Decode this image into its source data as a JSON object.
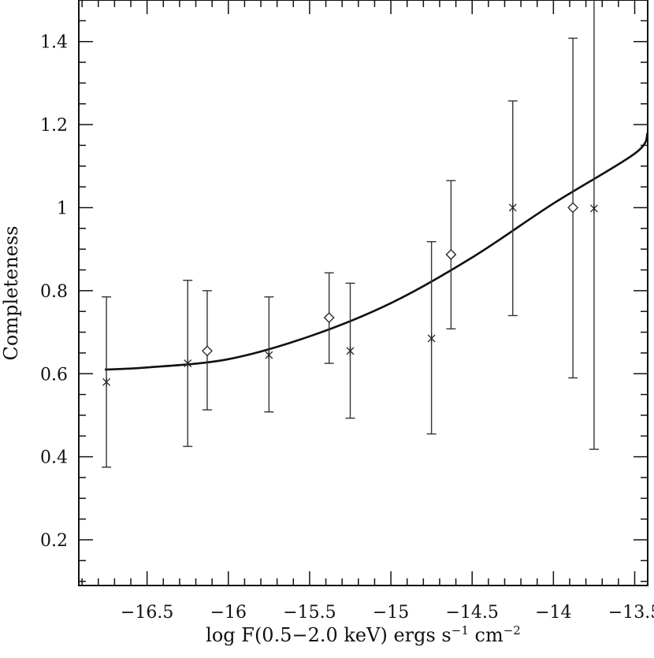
{
  "chart_data": {
    "type": "scatter",
    "title": "",
    "xlabel": {
      "prefix": "log F(0.5−2.0 keV) ergs s",
      "exp1": "−1",
      "middle": " cm",
      "exp2": "−2"
    },
    "ylabel": "Completeness",
    "xlim": [
      -16.92,
      -13.42
    ],
    "ylim": [
      0.09,
      1.5
    ],
    "x_ticks": [
      {
        "value": -16.5,
        "label": "−16.5"
      },
      {
        "value": -16.0,
        "label": "−16"
      },
      {
        "value": -15.5,
        "label": "−15.5"
      },
      {
        "value": -15.0,
        "label": "−15"
      },
      {
        "value": -14.5,
        "label": "−14.5"
      },
      {
        "value": -14.0,
        "label": "−14"
      },
      {
        "value": -13.5,
        "label": "−13.5"
      }
    ],
    "y_ticks": [
      {
        "value": 0.2,
        "label": "0.2"
      },
      {
        "value": 0.4,
        "label": "0.4"
      },
      {
        "value": 0.6,
        "label": "0.6"
      },
      {
        "value": 0.8,
        "label": "0.8"
      },
      {
        "value": 1.0,
        "label": "1"
      },
      {
        "value": 1.2,
        "label": "1.2"
      },
      {
        "value": 1.4,
        "label": "1.4"
      }
    ],
    "grid": false,
    "legend": "none",
    "series": [
      {
        "marker": "cross",
        "points": [
          {
            "x": -16.75,
            "y": 0.58,
            "ylo": 0.375,
            "yhi": 0.785
          },
          {
            "x": -16.25,
            "y": 0.625,
            "ylo": 0.425,
            "yhi": 0.825
          },
          {
            "x": -15.75,
            "y": 0.645,
            "ylo": 0.508,
            "yhi": 0.785
          },
          {
            "x": -15.25,
            "y": 0.655,
            "ylo": 0.493,
            "yhi": 0.818
          },
          {
            "x": -14.75,
            "y": 0.685,
            "ylo": 0.455,
            "yhi": 0.918
          },
          {
            "x": -14.25,
            "y": 1.0,
            "ylo": 0.74,
            "yhi": 1.257
          },
          {
            "x": -13.75,
            "y": 0.998,
            "ylo": 0.418,
            "yhi": 1.55
          }
        ]
      },
      {
        "marker": "diamond",
        "points": [
          {
            "x": -16.13,
            "y": 0.655,
            "ylo": 0.513,
            "yhi": 0.8
          },
          {
            "x": -15.38,
            "y": 0.735,
            "ylo": 0.625,
            "yhi": 0.843
          },
          {
            "x": -14.63,
            "y": 0.887,
            "ylo": 0.708,
            "yhi": 1.065
          },
          {
            "x": -13.88,
            "y": 1.0,
            "ylo": 0.59,
            "yhi": 1.408
          }
        ]
      }
    ],
    "fit_curve": {
      "points": [
        {
          "x": -16.76,
          "y": 0.61
        },
        {
          "x": -16.5,
          "y": 0.615
        },
        {
          "x": -16.0,
          "y": 0.635
        },
        {
          "x": -15.5,
          "y": 0.69
        },
        {
          "x": -15.0,
          "y": 0.77
        },
        {
          "x": -14.5,
          "y": 0.88
        },
        {
          "x": -14.0,
          "y": 1.01
        },
        {
          "x": -13.5,
          "y": 1.13
        },
        {
          "x": -13.42,
          "y": 1.18
        }
      ]
    }
  }
}
